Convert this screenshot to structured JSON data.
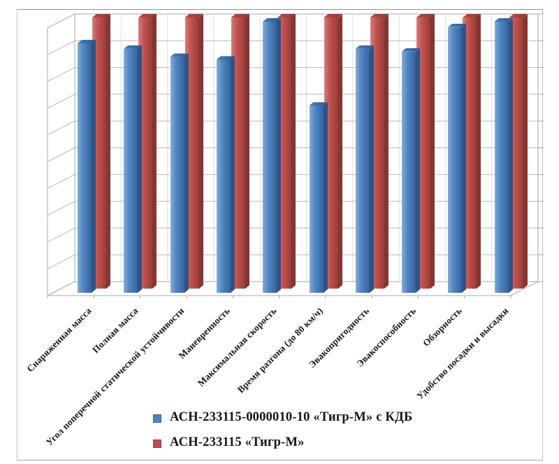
{
  "window": {
    "background": "#ffffff",
    "frame_border_color": "#c2c2c2"
  },
  "chart_data": {
    "type": "bar",
    "projection": "3d-clustered-column",
    "title": "",
    "xlabel": "",
    "ylabel": "",
    "categories": [
      "Снаряженная масса",
      "Полная масса",
      "Угол поперечной статической устойчивости",
      "Маневренность",
      "Максимальная скорость",
      "Время разгона (до 80 км/ч)",
      "Эвакопригодность",
      "Эвакоспособность",
      "Обзорность",
      "Удобство посадки и высадки"
    ],
    "series": [
      {
        "name": "АСН-233115-0000010-10 «Тигр-М» с КДБ",
        "color": "#4f81bd",
        "values": [
          9.2,
          9.0,
          8.7,
          8.6,
          10,
          6.9,
          9.0,
          8.9,
          9.8,
          10
        ]
      },
      {
        "name": "АСН-233115 «Тигр-М»",
        "color": "#c0504d",
        "values": [
          10,
          10,
          10,
          10,
          10,
          10,
          10,
          10,
          10,
          10
        ]
      }
    ],
    "ylim": [
      0,
      10
    ],
    "y_gridline_count": 10,
    "y_tick_labels_visible": false,
    "grid": true,
    "gridline_color": "#b9b9b9",
    "legend_position": "bottom-center",
    "category_label_rotation_deg": 45
  }
}
